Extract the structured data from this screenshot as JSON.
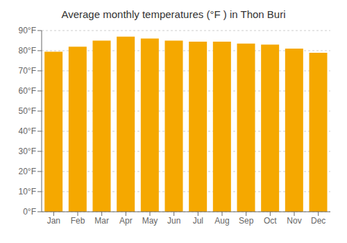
{
  "chart_data": {
    "type": "bar",
    "title": "Average monthly temperatures (°F ) in Thon Buri",
    "categories": [
      "Jan",
      "Feb",
      "Mar",
      "Apr",
      "May",
      "Jun",
      "Jul",
      "Aug",
      "Sep",
      "Oct",
      "Nov",
      "Dec"
    ],
    "values": [
      79.5,
      82.0,
      85.0,
      87.0,
      86.0,
      85.0,
      84.5,
      84.5,
      83.5,
      83.0,
      81.0,
      79.0
    ],
    "color": "#F5A800",
    "ylim": [
      0,
      90
    ],
    "yticks": [
      {
        "value": 0,
        "label": "0°F"
      },
      {
        "value": 10,
        "label": "10°F"
      },
      {
        "value": 20,
        "label": "20°F"
      },
      {
        "value": 30,
        "label": "30°F"
      },
      {
        "value": 40,
        "label": "40°F"
      },
      {
        "value": 50,
        "label": "50°F"
      },
      {
        "value": 60,
        "label": "60°F"
      },
      {
        "value": 70,
        "label": "70°F"
      },
      {
        "value": 80,
        "label": "80°F"
      },
      {
        "value": 90,
        "label": "90°F"
      }
    ],
    "grid": true
  }
}
